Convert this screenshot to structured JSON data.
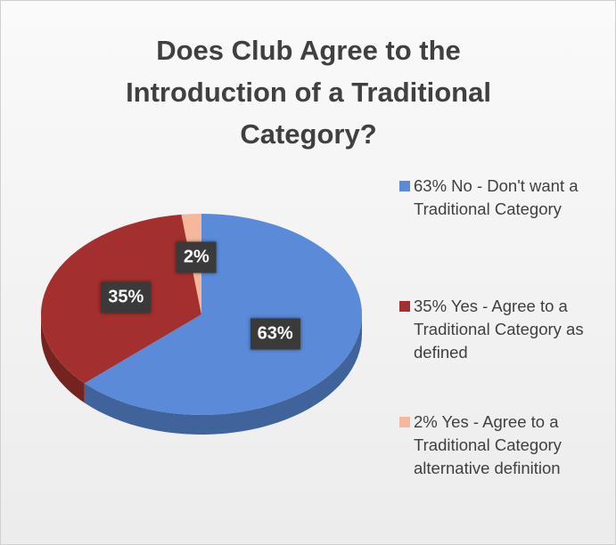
{
  "chart_data": {
    "type": "pie",
    "title": "Does Club Agree to the Introduction of a Traditional Category?",
    "categories": [
      "63% No - Don't want a Traditional Category",
      "35% Yes - Agree to a Traditional Category as defined",
      "2% Yes - Agree to a Traditional Category alternative definition"
    ],
    "values": [
      63,
      35,
      2
    ],
    "value_labels": [
      "63%",
      "35%",
      "2%"
    ],
    "colors": [
      "#5a8ad8",
      "#a3302e",
      "#f6b89c"
    ],
    "legend": "right"
  }
}
